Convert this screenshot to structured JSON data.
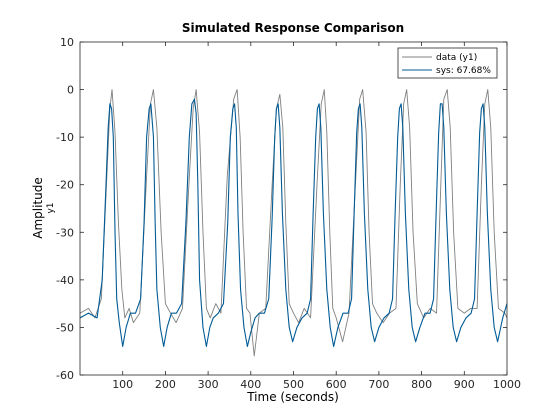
{
  "chart_data": {
    "type": "line",
    "title": "Simulated Response Comparison",
    "xlabel": "Time (seconds)",
    "ylabel": "Amplitude",
    "channel_label": "y1",
    "xlim": [
      0,
      1000
    ],
    "ylim": [
      -60,
      10
    ],
    "xticks": [
      100,
      200,
      300,
      400,
      500,
      600,
      700,
      800,
      900,
      1000
    ],
    "yticks": [
      -60,
      -50,
      -40,
      -30,
      -20,
      -10,
      0,
      10
    ],
    "grid": false,
    "legend_position": "top-right",
    "colors": {
      "data": "#808080",
      "sys": "#005b96"
    },
    "series": [
      {
        "name": "data (y1)",
        "color": "#808080",
        "x": [
          0,
          20,
          35,
          50,
          62,
          70,
          75,
          82,
          90,
          98,
          105,
          115,
          125,
          140,
          155,
          165,
          172,
          180,
          190,
          200,
          212,
          225,
          240,
          255,
          265,
          272,
          280,
          288,
          296,
          305,
          318,
          330,
          345,
          360,
          368,
          375,
          382,
          390,
          398,
          408,
          420,
          435,
          450,
          460,
          468,
          475,
          482,
          490,
          500,
          512,
          525,
          540,
          555,
          565,
          572,
          578,
          585,
          592,
          600,
          615,
          630,
          645,
          655,
          662,
          670,
          677,
          685,
          695,
          710,
          725,
          740,
          750,
          758,
          765,
          772,
          780,
          790,
          805,
          820,
          835,
          845,
          852,
          860,
          867,
          875,
          885,
          900,
          915,
          930,
          940,
          948,
          955,
          962,
          970,
          980,
          995,
          1000
        ],
        "y": [
          -47,
          -46,
          -48,
          -44,
          -20,
          -4,
          0,
          -9,
          -28,
          -42,
          -48,
          -46,
          -49,
          -47,
          -20,
          -3,
          0,
          -8,
          -30,
          -45,
          -47,
          -49,
          -46,
          -20,
          -4,
          0,
          -9,
          -30,
          -46,
          -48,
          -45,
          -47,
          -18,
          -2,
          0,
          -10,
          -30,
          -46,
          -47,
          -56,
          -47,
          -46,
          -20,
          -4,
          -1,
          -8,
          -28,
          -45,
          -47,
          -49,
          -46,
          -48,
          -20,
          -3,
          0,
          -9,
          -30,
          -46,
          -48,
          -53,
          -47,
          -20,
          -2,
          0,
          -9,
          -30,
          -45,
          -47,
          -49,
          -47,
          -46,
          -20,
          -3,
          0,
          -8,
          -30,
          -45,
          -48,
          -46,
          -47,
          -20,
          -2,
          0,
          -8,
          -30,
          -46,
          -47,
          -46,
          -46,
          -20,
          -3,
          0,
          -8,
          -30,
          -46,
          -47,
          -48
        ]
      },
      {
        "name": "sys: 67.68%",
        "color": "#005b96",
        "x": [
          0,
          20,
          40,
          52,
          60,
          66,
          70,
          74,
          78,
          82,
          86,
          92,
          100,
          108,
          118,
          130,
          142,
          150,
          156,
          162,
          166,
          172,
          176,
          180,
          188,
          196,
          204,
          214,
          226,
          238,
          248,
          256,
          262,
          268,
          272,
          276,
          280,
          288,
          296,
          304,
          312,
          324,
          336,
          346,
          352,
          358,
          362,
          366,
          370,
          376,
          384,
          392,
          400,
          410,
          420,
          432,
          442,
          450,
          456,
          460,
          464,
          468,
          474,
          482,
          490,
          498,
          508,
          520,
          532,
          540,
          546,
          552,
          556,
          560,
          564,
          570,
          578,
          586,
          594,
          604,
          616,
          628,
          636,
          642,
          648,
          652,
          656,
          660,
          666,
          674,
          682,
          690,
          700,
          712,
          724,
          732,
          738,
          744,
          748,
          752,
          756,
          762,
          770,
          778,
          786,
          796,
          808,
          820,
          828,
          834,
          840,
          844,
          848,
          852,
          858,
          866,
          874,
          882,
          892,
          904,
          916,
          924,
          930,
          936,
          940,
          944,
          948,
          954,
          962,
          970,
          978,
          990,
          1000
        ],
        "y": [
          -48,
          -47,
          -48,
          -40,
          -22,
          -8,
          -3,
          -4,
          -10,
          -30,
          -44,
          -49,
          -54,
          -50,
          -47,
          -47,
          -44,
          -28,
          -10,
          -4,
          -3,
          -10,
          -28,
          -42,
          -50,
          -54,
          -50,
          -47,
          -47,
          -45,
          -28,
          -10,
          -3,
          -2,
          -5,
          -20,
          -40,
          -50,
          -54,
          -50,
          -48,
          -47,
          -45,
          -28,
          -10,
          -4,
          -3,
          -8,
          -26,
          -42,
          -50,
          -54,
          -51,
          -48,
          -47,
          -47,
          -44,
          -27,
          -10,
          -4,
          -3,
          -8,
          -26,
          -42,
          -50,
          -53,
          -50,
          -48,
          -47,
          -44,
          -26,
          -10,
          -4,
          -3,
          -8,
          -26,
          -42,
          -50,
          -54,
          -50,
          -47,
          -47,
          -44,
          -26,
          -9,
          -4,
          -3,
          -8,
          -26,
          -42,
          -50,
          -53,
          -50,
          -48,
          -47,
          -44,
          -26,
          -10,
          -4,
          -3,
          -8,
          -26,
          -42,
          -50,
          -53,
          -50,
          -47,
          -47,
          -44,
          -26,
          -9,
          -3,
          -3,
          -8,
          -26,
          -42,
          -50,
          -53,
          -50,
          -48,
          -47,
          -44,
          -26,
          -9,
          -4,
          -3,
          -8,
          -26,
          -42,
          -50,
          -53,
          -48,
          -45
        ]
      }
    ]
  }
}
